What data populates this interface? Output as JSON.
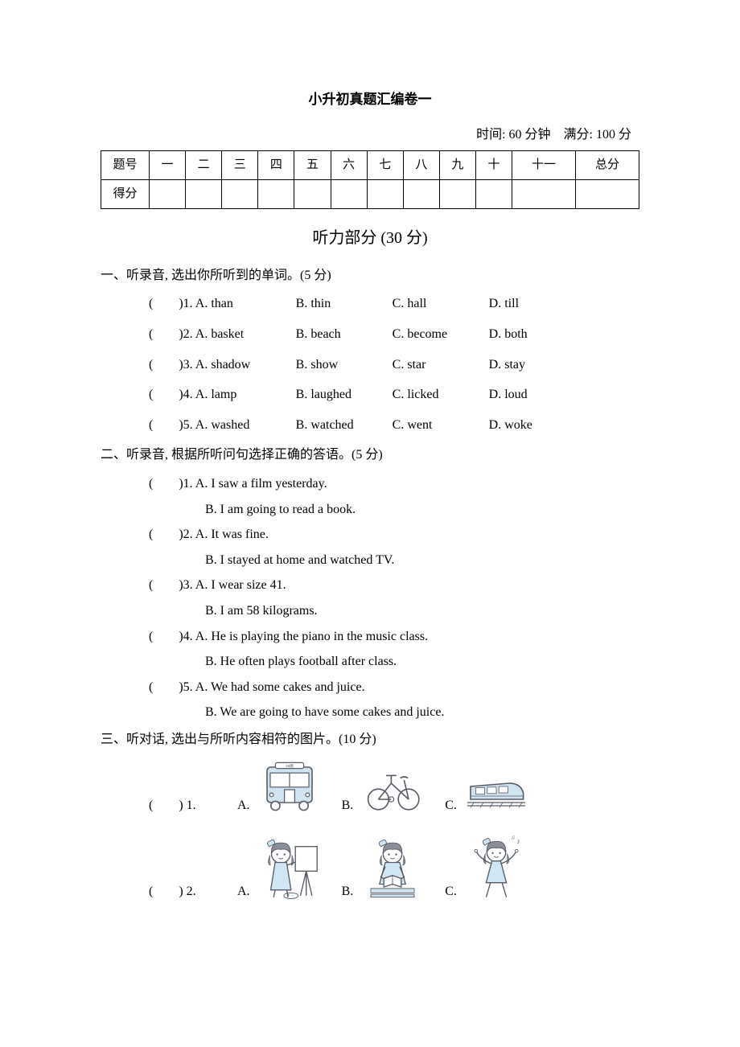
{
  "title": "小升初真题汇编卷一",
  "time_info": "时间: 60 分钟　满分: 100 分",
  "score_table": {
    "row1": [
      "题号",
      "一",
      "二",
      "三",
      "四",
      "五",
      "六",
      "七",
      "八",
      "九",
      "十",
      "十一",
      "总分"
    ],
    "row2_label": "得分"
  },
  "listening_header": "听力部分 (30 分)",
  "section1": {
    "instruction": "一、听录音, 选出你所听到的单词。(5 分)",
    "items": [
      {
        "n": "1",
        "A": "A. than",
        "B": "B. thin",
        "C": "C. hall",
        "D": "D. till"
      },
      {
        "n": "2",
        "A": "A. basket",
        "B": "B. beach",
        "C": "C. become",
        "D": "D. both"
      },
      {
        "n": "3",
        "A": "A. shadow",
        "B": "B. show",
        "C": "C. star",
        "D": "D. stay"
      },
      {
        "n": "4",
        "A": "A. lamp",
        "B": "B. laughed",
        "C": "C. licked",
        "D": "D. loud"
      },
      {
        "n": "5",
        "A": "A. washed",
        "B": "B. watched",
        "C": "C. went",
        "D": "D. woke"
      }
    ]
  },
  "section2": {
    "instruction": "二、听录音, 根据所听问句选择正确的答语。(5 分)",
    "items": [
      {
        "n": "1",
        "A": "A. I saw a film yesterday.",
        "B": "B. I am going to read a book."
      },
      {
        "n": "2",
        "A": "A. It was fine.",
        "B": "B. I stayed at home and watched TV."
      },
      {
        "n": "3",
        "A": "A. I wear size 41.",
        "B": "B. I am 58 kilograms."
      },
      {
        "n": "4",
        "A": "A. He is playing the piano in the music class.",
        "B": "B. He often plays football after class."
      },
      {
        "n": "5",
        "A": "A. We had some cakes and juice.",
        "B": "B. We are going to have some cakes and juice."
      }
    ]
  },
  "section3": {
    "instruction": "三、听对话, 选出与所听内容相符的图片。(10 分)",
    "items": [
      {
        "n": "1",
        "labels": [
          "A.",
          "B.",
          "C."
        ],
        "icons": [
          "bus",
          "bicycle",
          "train"
        ]
      },
      {
        "n": "2",
        "labels": [
          "A.",
          "B.",
          "C."
        ],
        "icons": [
          "girl-painting",
          "girl-reading",
          "girl-dancing"
        ]
      }
    ]
  },
  "colors": {
    "stroke": "#555a66",
    "light": "#d0e3f0",
    "hair": "#8a8f99",
    "skin": "#ffffff",
    "dress": "#cfe7f5"
  },
  "labels": {
    "paren_open": "(",
    "paren_close": ")",
    "paren_gap": "　　"
  }
}
